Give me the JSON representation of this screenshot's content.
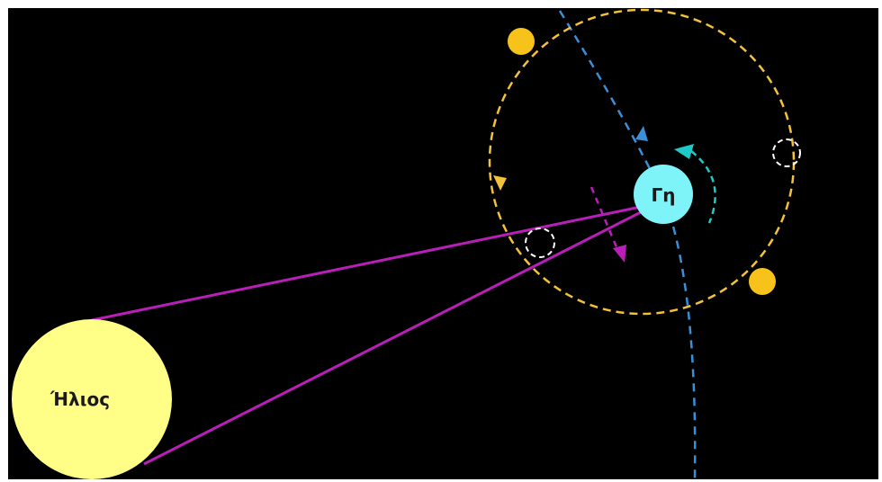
{
  "diagram": {
    "sun": {
      "label": "Ήλιος",
      "color": "#ffff88"
    },
    "earth": {
      "label": "Γη",
      "color": "#7ef3f8"
    },
    "moon_color": "#f7c31b",
    "orbit_color": "#f3c13a",
    "earth_path_color": "#3b8fd6",
    "rotation_arrow_color": "#1fc9c9",
    "sight_line_color": "#b81fb8",
    "background": "#000000"
  }
}
